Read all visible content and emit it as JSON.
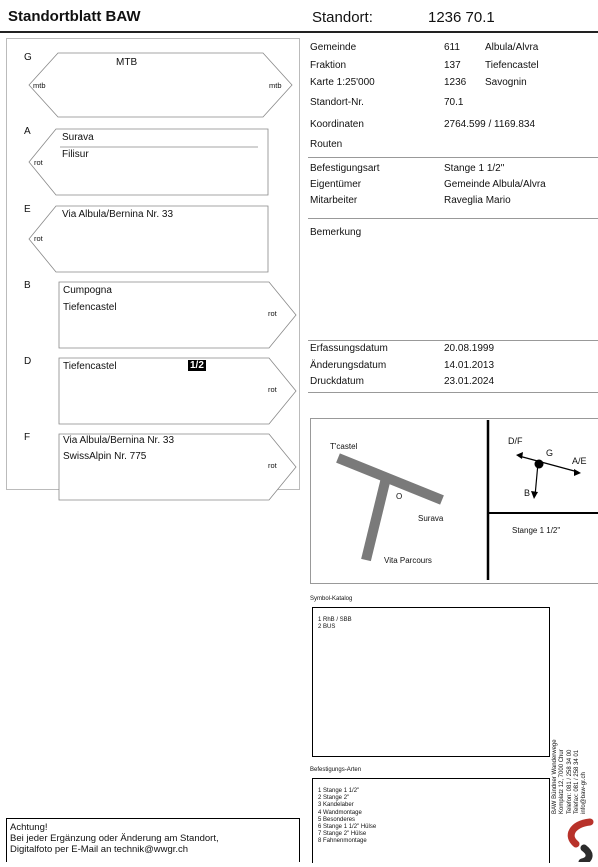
{
  "header": {
    "title": "Standortblatt BAW",
    "standort_label": "Standort:",
    "standort_value": "1236 70.1"
  },
  "signs": {
    "G": {
      "letter": "G",
      "title": "MTB",
      "left": "mtb",
      "right": "mtb"
    },
    "A": {
      "letter": "A",
      "line1": "Surava",
      "line2": "Filisur",
      "color": "rot"
    },
    "E": {
      "letter": "E",
      "line1": "Via Albula/Bernina Nr. 33",
      "color": "rot"
    },
    "B": {
      "letter": "B",
      "line1": "Cumpogna",
      "line2": "Tiefencastel",
      "color": "rot"
    },
    "D": {
      "letter": "D",
      "line1": "Tiefencastel",
      "badge": "1/2",
      "color": "rot"
    },
    "F": {
      "letter": "F",
      "line1": "Via Albula/Bernina Nr. 33",
      "line2": "SwissAlpin Nr. 775",
      "color": "rot"
    }
  },
  "info": {
    "gemeinde": {
      "label": "Gemeinde",
      "code": "611",
      "name": "Albula/Alvra"
    },
    "fraktion": {
      "label": "Fraktion",
      "code": "137",
      "name": "Tiefencastel"
    },
    "karte": {
      "label": "Karte 1:25'000",
      "code": "1236",
      "name": "Savognin"
    },
    "standort_nr": {
      "label": "Standort-Nr.",
      "value": "70.1"
    },
    "koordinaten": {
      "label": "Koordinaten",
      "value": "2764.599 / 1169.834"
    },
    "routen": {
      "label": "Routen"
    },
    "befestigungsart": {
      "label": "Befestigungsart",
      "value": "Stange 1 1/2\""
    },
    "eigentuemer": {
      "label": "Eigentümer",
      "value": "Gemeinde Albula/Alvra"
    },
    "mitarbeiter": {
      "label": "Mitarbeiter",
      "value": "Raveglia Mario"
    },
    "bemerkung": {
      "label": "Bemerkung"
    },
    "erfassungsdatum": {
      "label": "Erfassungsdatum",
      "value": "20.08.1999"
    },
    "aenderungsdatum": {
      "label": "Änderungsdatum",
      "value": "14.01.2013"
    },
    "druckdatum": {
      "label": "Druckdatum",
      "value": "23.01.2024"
    }
  },
  "sketch": {
    "tcastel": "T'castel",
    "o": "O",
    "surava": "Surava",
    "vita": "Vita Parcours",
    "df": "D/F",
    "g": "G",
    "ae": "A/E",
    "b": "B",
    "stange": "Stange 1 1/2\""
  },
  "symbol_katalog": {
    "title": "Symbol-Katalog",
    "items": [
      "1  RhB / SBB",
      "2  BUS"
    ]
  },
  "befestigungs_arten": {
    "title": "Befestigungs-Arten",
    "items": [
      "1  Stange 1 1/2\"",
      "2  Stange 2\"",
      "3  Kandelaber",
      "4  Wandmontage",
      "5  Besonderes",
      "6  Stange 1 1/2\" Hülse",
      "7  Stange 2\"      Hülse",
      "8  Fahnenmontage"
    ]
  },
  "notice": {
    "line1": "Achtung!",
    "line2": "Bei jeder Ergänzung oder Änderung am Standort,",
    "line3": "Digitalfoto per E-Mail an technik@wwgr.ch"
  },
  "address": {
    "line1": "BAW Bündner Wanderwege",
    "line2": "Komplatz 12, 7000 Chur",
    "line3": "Telefon: 081 / 258 34 00",
    "line4": "Telefax: 081 / 258 34 01",
    "line5": "info@baw-gr.ch"
  },
  "colors": {
    "logo_red": "#b8322a",
    "logo_dark": "#2c2c2c"
  }
}
